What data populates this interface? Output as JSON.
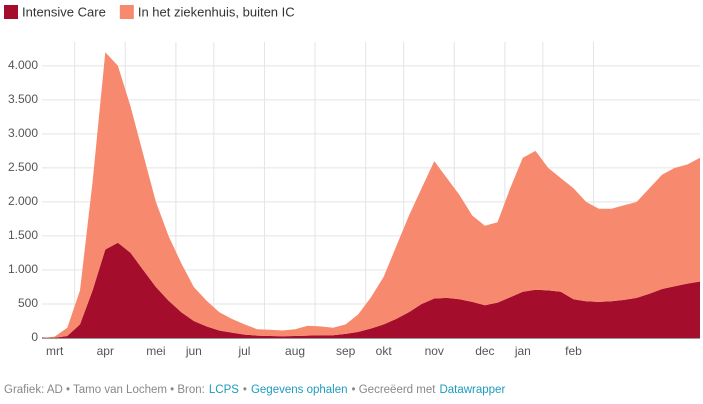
{
  "chart_data": {
    "type": "stacked_area",
    "categories": [
      null,
      "mrt",
      null,
      null,
      null,
      "apr",
      null,
      null,
      null,
      "mei",
      null,
      null,
      "jun",
      null,
      null,
      null,
      "jul",
      null,
      null,
      null,
      "aug",
      null,
      null,
      null,
      "sep",
      null,
      null,
      "okt",
      null,
      null,
      null,
      "nov",
      null,
      null,
      null,
      "dec",
      null,
      null,
      "jan",
      null,
      null,
      null,
      "feb",
      null,
      null,
      null,
      null,
      null,
      null,
      null,
      null,
      null,
      null
    ],
    "series": [
      {
        "name": "Intensive Care",
        "color": "#a50d2d",
        "values": [
          0,
          5,
          30,
          200,
          700,
          1300,
          1400,
          1250,
          1000,
          750,
          550,
          380,
          250,
          170,
          110,
          80,
          50,
          35,
          30,
          25,
          30,
          35,
          40,
          40,
          60,
          90,
          140,
          200,
          280,
          380,
          500,
          580,
          590,
          570,
          530,
          480,
          520,
          600,
          680,
          710,
          700,
          680,
          570,
          540,
          530,
          540,
          560,
          590,
          650,
          720,
          760,
          800,
          830
        ]
      },
      {
        "name": "In het ziekenhuis, buiten IC",
        "color": "#f78a6e",
        "values": [
          0,
          15,
          120,
          500,
          1600,
          2900,
          2600,
          2150,
          1700,
          1250,
          950,
          720,
          500,
          380,
          270,
          200,
          150,
          95,
          90,
          85,
          100,
          145,
          130,
          110,
          140,
          260,
          460,
          700,
          1070,
          1420,
          1700,
          2020,
          1760,
          1530,
          1270,
          1170,
          1180,
          1600,
          1970,
          2040,
          1800,
          1670,
          1630,
          1460,
          1370,
          1360,
          1390,
          1410,
          1550,
          1680,
          1740,
          1750,
          1820
        ]
      }
    ],
    "ylim": [
      0,
      4350
    ],
    "yticks": [
      0,
      500,
      {
        "value": 1000,
        "label": "1.000"
      },
      {
        "value": 1500,
        "label": "1.500"
      },
      {
        "value": 2000,
        "label": "2.000"
      },
      {
        "value": 2500,
        "label": "2.500"
      },
      {
        "value": 3000,
        "label": "3.000"
      },
      {
        "value": 3500,
        "label": "3.500"
      },
      {
        "value": 4000,
        "label": "4.000"
      }
    ],
    "grid": true,
    "legend": "top-left"
  },
  "footer": [
    {
      "text": "Grafiek: AD • Tamo van Lochem • Bron:"
    },
    {
      "text": "LCPS",
      "link": true
    },
    {
      "text": "•"
    },
    {
      "text": "Gegevens ophalen",
      "link": true
    },
    {
      "text": "• Gecreëerd met"
    },
    {
      "text": "Datawrapper",
      "link": true
    }
  ]
}
